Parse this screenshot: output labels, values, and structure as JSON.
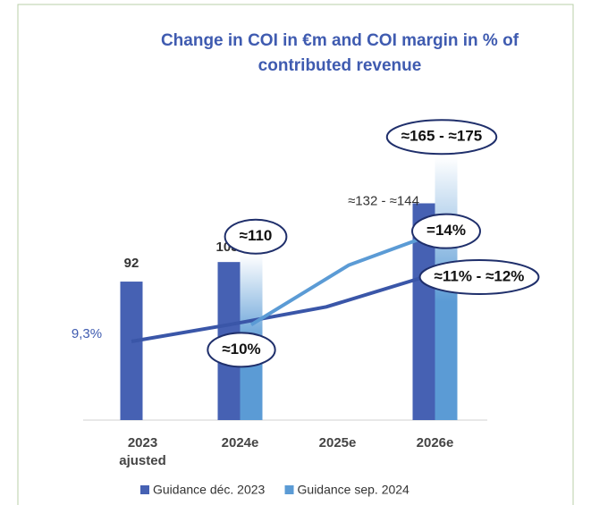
{
  "chart_data": {
    "type": "bar",
    "title": "Change in COI in €m and COI margin in % of contributed revenue",
    "categories": [
      "2023 ajusted",
      "2024e",
      "2025e",
      "2026e"
    ],
    "ylim": [
      0,
      190
    ],
    "y2lim": [
      6,
      18
    ],
    "series": [
      {
        "name": "Guidance déc. 2023",
        "type": "bar",
        "color": "#4661b3",
        "values": [
          92,
          105,
          null,
          144
        ],
        "value_labels": [
          "92",
          "105",
          null,
          "≈132 - ≈144"
        ]
      },
      {
        "name": "Guidance sep. 2024",
        "type": "bar",
        "color": "#5b9bd5",
        "values": [
          null,
          110,
          null,
          175
        ],
        "value_labels": [
          null,
          "≈110",
          null,
          "≈165 - ≈175"
        ]
      },
      {
        "type": "line",
        "axis": "y2",
        "color": "#3a56a8",
        "values": [
          9.3,
          10,
          10.75,
          12
        ],
        "value_labels": [
          "9,3%",
          "≈10%",
          null,
          "≈11% - ≈12%"
        ]
      },
      {
        "type": "line",
        "axis": "y2",
        "color": "#5b9bd5",
        "values": [
          null,
          10,
          12.5,
          14
        ],
        "value_labels": [
          null,
          null,
          null,
          "=14%"
        ]
      }
    ]
  }
}
